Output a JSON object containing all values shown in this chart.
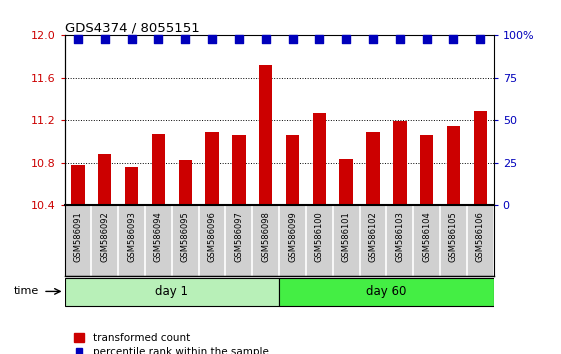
{
  "title": "GDS4374 / 8055151",
  "samples": [
    "GSM586091",
    "GSM586092",
    "GSM586093",
    "GSM586094",
    "GSM586095",
    "GSM586096",
    "GSM586097",
    "GSM586098",
    "GSM586099",
    "GSM586100",
    "GSM586101",
    "GSM586102",
    "GSM586103",
    "GSM586104",
    "GSM586105",
    "GSM586106"
  ],
  "bar_values": [
    10.78,
    10.88,
    10.76,
    11.07,
    10.83,
    11.09,
    11.06,
    11.72,
    11.06,
    11.27,
    10.84,
    11.09,
    11.19,
    11.06,
    11.15,
    11.29
  ],
  "percentile_values": [
    98,
    98,
    98,
    98,
    98,
    98,
    98,
    98,
    98,
    98,
    98,
    98,
    98,
    98,
    98,
    98
  ],
  "n_day1": 8,
  "n_day60": 8,
  "ylim_left": [
    10.4,
    12.0
  ],
  "ylim_right": [
    0,
    100
  ],
  "yticks_left": [
    10.4,
    10.8,
    11.2,
    11.6,
    12.0
  ],
  "yticks_right": [
    0,
    25,
    50,
    75,
    100
  ],
  "ytick_labels_right": [
    "0",
    "25",
    "50",
    "75",
    "100%"
  ],
  "bar_color": "#cc0000",
  "bar_width": 0.5,
  "dot_color": "#0000bb",
  "dot_size": 35,
  "background_color": "#ffffff",
  "label_bg_color": "#d0d0d0",
  "label_border_color": "#999999",
  "day1_color": "#b8f0b8",
  "day60_color": "#44ee44",
  "day1_label": "day 1",
  "day60_label": "day 60",
  "time_label": "time",
  "legend_bar_label": "transformed count",
  "legend_dot_label": "percentile rank within the sample",
  "grid_color": "black",
  "left_tick_color": "#cc0000",
  "right_tick_color": "#0000bb",
  "spine_color": "black"
}
